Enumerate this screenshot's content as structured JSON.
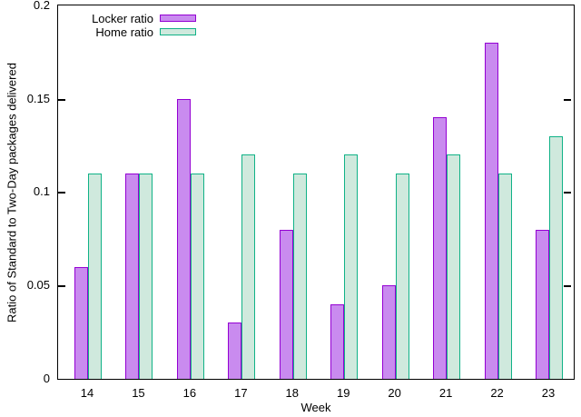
{
  "chart_data": {
    "type": "bar",
    "title": "",
    "xlabel": "Week",
    "ylabel": "Ratio of Standard to Two-Day packages delivered",
    "categories": [
      "14",
      "15",
      "16",
      "17",
      "18",
      "19",
      "20",
      "21",
      "22",
      "23"
    ],
    "series": [
      {
        "name": "Locker ratio",
        "values": [
          0.06,
          0.11,
          0.15,
          0.03,
          0.08,
          0.04,
          0.05,
          0.14,
          0.18,
          0.08
        ],
        "fill_color": "#c98bef",
        "border_color": "#9400d3"
      },
      {
        "name": "Home ratio",
        "values": [
          0.11,
          0.11,
          0.11,
          0.12,
          0.11,
          0.12,
          0.11,
          0.12,
          0.11,
          0.13
        ],
        "fill_color": "#cfe9dd",
        "border_color": "#10b287"
      }
    ],
    "ylim": [
      0,
      0.2
    ],
    "yticks": [
      0,
      0.05,
      0.1,
      0.15,
      0.2
    ],
    "ytick_labels": [
      "0",
      "0.05",
      "0.1",
      "0.15",
      "0.2"
    ],
    "grid": false,
    "legend_position": "top-left-inside",
    "axis_color": "#000000",
    "background_color": "#ffffff"
  }
}
